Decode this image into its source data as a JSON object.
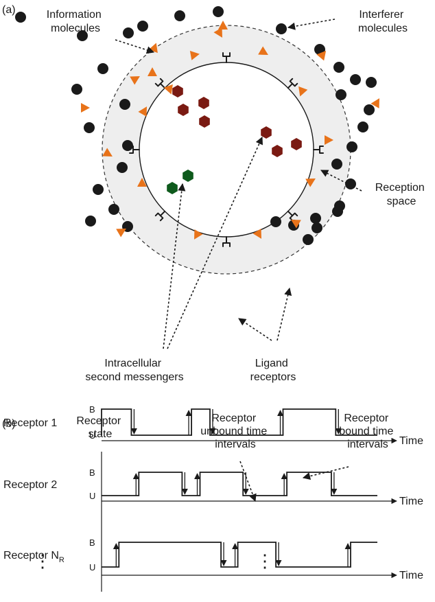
{
  "panel_a": {
    "label": "(a)",
    "info_label": [
      "Information",
      "molecules"
    ],
    "interferer_label": [
      "Interferer",
      "molecules"
    ],
    "reception_label": [
      "Reception",
      "space"
    ],
    "messenger_label": [
      "Intracellular",
      "second messengers"
    ],
    "ligand_label": [
      "Ligand",
      "receptors"
    ],
    "colors": {
      "info": "#e8731a",
      "interferer": "#1a1a1a",
      "messenger_red": "#7a1a12",
      "messenger_green": "#0e5a1c",
      "reception_fill": "#eeeeee"
    }
  },
  "panel_b": {
    "label": "(b)",
    "ylabel": [
      "Receptor",
      "state"
    ],
    "unbound_label": [
      "Receptor",
      "unbound time",
      "intervals"
    ],
    "bound_label": [
      "Receptor",
      "bound time",
      "intervals"
    ],
    "state_b": "B",
    "state_u": "U",
    "time_label": "Time",
    "receptors": [
      {
        "name": "Receptor 1",
        "name_sub": "",
        "bound": [
          [
            0,
            0.108
          ],
          [
            0.326,
            0.393
          ],
          [
            0.658,
            0.849
          ]
        ]
      },
      {
        "name": "Receptor 2",
        "name_sub": "",
        "bound": [
          [
            0.135,
            0.292
          ],
          [
            0.357,
            0.513
          ],
          [
            0.672,
            0.833
          ]
        ]
      },
      {
        "name": "Receptor N",
        "name_sub": "R",
        "bound": [
          [
            0.063,
            0.433
          ],
          [
            0.494,
            0.632
          ],
          [
            0.903,
            1.0
          ]
        ]
      }
    ],
    "ellipsis": "⋮"
  }
}
